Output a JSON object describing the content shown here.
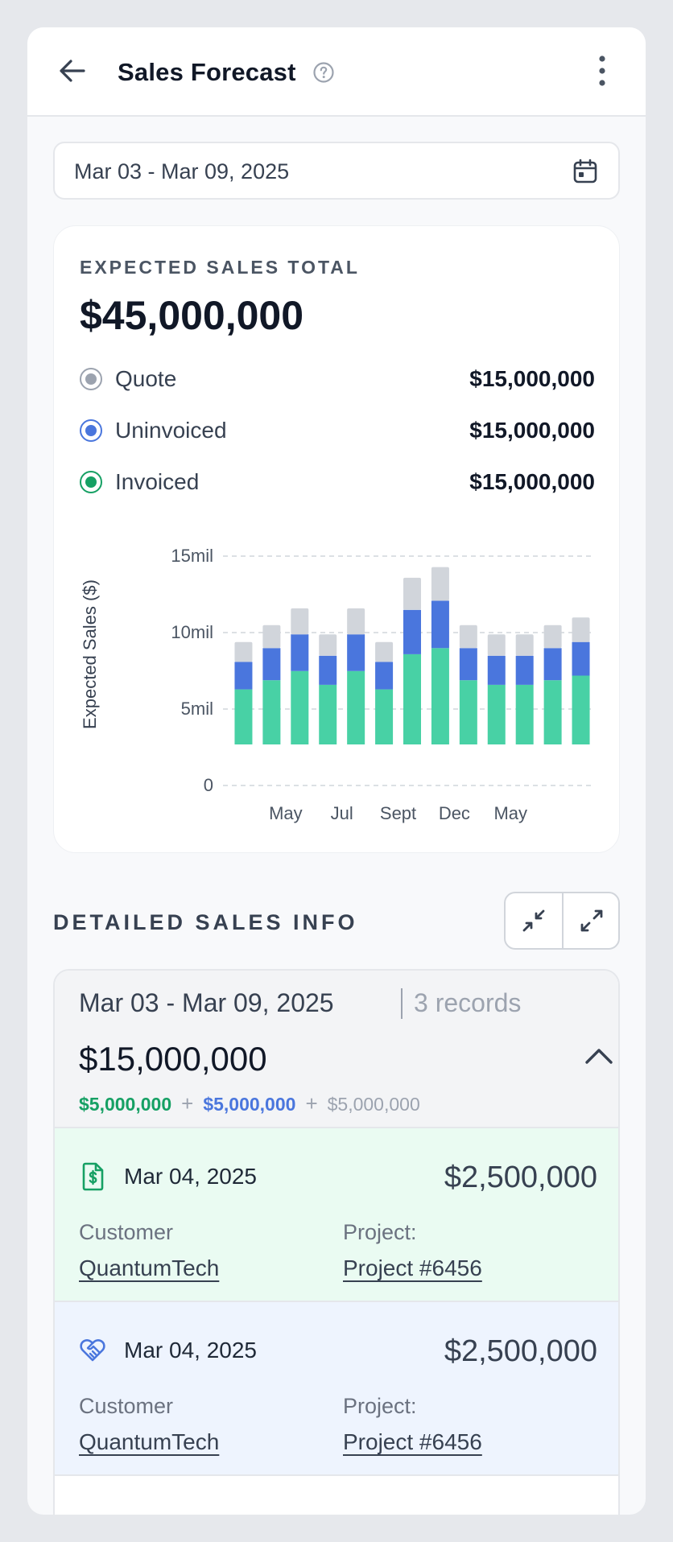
{
  "header": {
    "title": "Sales Forecast"
  },
  "date_range": {
    "value": "Mar 03 - Mar 09, 2025"
  },
  "summary": {
    "label": "EXPECTED SALES TOTAL",
    "total": "$45,000,000",
    "legend": [
      {
        "name": "Quote",
        "value": "$15,000,000",
        "color": "#9ca3af"
      },
      {
        "name": "Uninvoiced",
        "value": "$15,000,000",
        "color": "#4a76dd"
      },
      {
        "name": "Invoiced",
        "value": "$15,000,000",
        "color": "#16a064"
      }
    ]
  },
  "chart_data": {
    "type": "bar",
    "stacked": true,
    "title": "",
    "xlabel": "",
    "ylabel": "Expected Sales ($)",
    "ylim": [
      0,
      15
    ],
    "yticks": [
      "0",
      "5mil",
      "10mil",
      "15mil"
    ],
    "xtick_labels": [
      "May",
      "Jul",
      "Sept",
      "Dec",
      "May"
    ],
    "xtick_positions": [
      2,
      4,
      6,
      8,
      10
    ],
    "series": [
      {
        "name": "Invoiced",
        "color": "#48d1a5",
        "values": [
          3.6,
          4.2,
          4.8,
          3.9,
          4.8,
          3.6,
          5.9,
          6.3,
          4.2,
          3.9,
          3.9,
          4.2,
          4.5
        ]
      },
      {
        "name": "Uninvoiced",
        "color": "#4a76dd",
        "values": [
          1.8,
          2.1,
          2.4,
          1.9,
          2.4,
          1.8,
          2.9,
          3.1,
          2.1,
          1.9,
          1.9,
          2.1,
          2.2
        ]
      },
      {
        "name": "Quote",
        "color": "#d1d5db",
        "values": [
          1.3,
          1.5,
          1.7,
          1.4,
          1.7,
          1.3,
          2.1,
          2.2,
          1.5,
          1.4,
          1.4,
          1.5,
          1.6
        ]
      }
    ]
  },
  "details": {
    "title": "DETAILED SALES INFO",
    "group": {
      "date": "Mar 03 - Mar 09, 2025",
      "records_count": "3 records",
      "total": "$15,000,000",
      "invoiced": "$5,000,000",
      "uninvoiced": "$5,000,000",
      "quote": "$5,000,000",
      "plus": "+"
    },
    "records": [
      {
        "date": "Mar 04, 2025",
        "amount": "$2,500,000",
        "customer_label": "Customer",
        "customer": "QuantumTech",
        "project_label": "Project:",
        "project": "Project #6456"
      },
      {
        "date": "Mar 04, 2025",
        "amount": "$2,500,000",
        "customer_label": "Customer",
        "customer": "QuantumTech",
        "project_label": "Project:",
        "project": "Project #6456"
      }
    ]
  }
}
